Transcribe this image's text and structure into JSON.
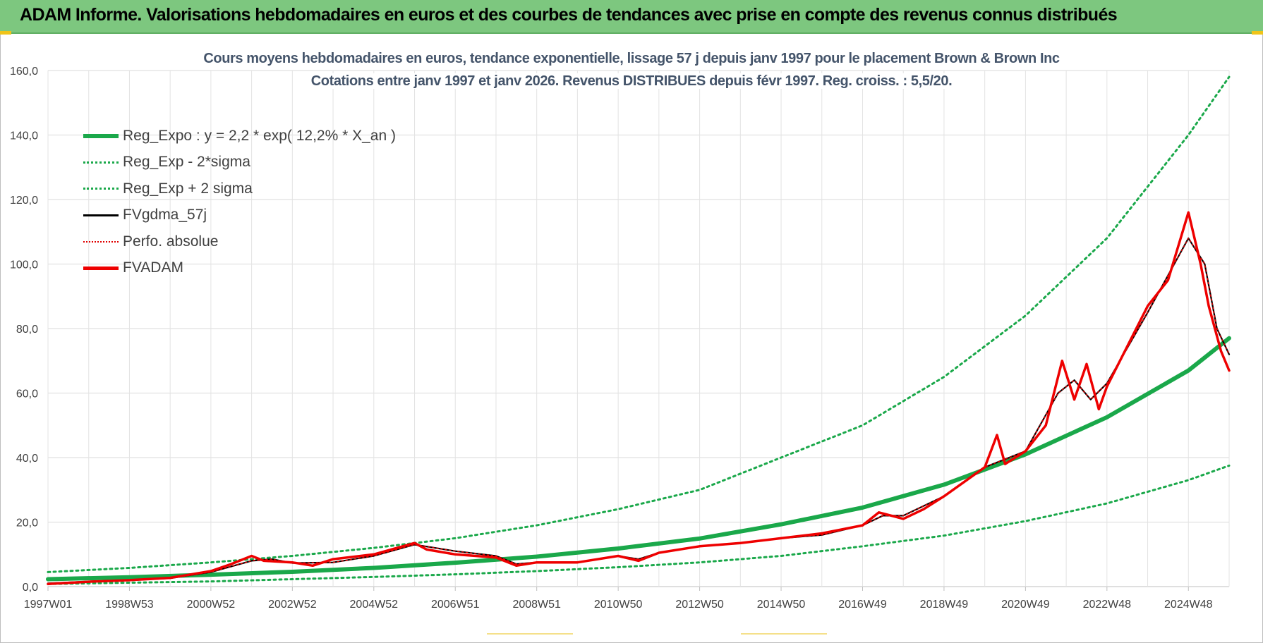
{
  "header": {
    "banner_title": "ADAM Informe. Valorisations hebdomadaires en euros et des courbes de tendances avec prise en compte des revenus connus distribués"
  },
  "colors": {
    "banner": "#7dc77f",
    "reg_expo": "#1aa84a",
    "sigma_bands": "#1aa84a",
    "fvgdma": "#000000",
    "perfo": "#e00000",
    "fvadam": "#ee0000",
    "title_text": "#44546a",
    "grid": "#d9d9d9"
  },
  "chart_data": {
    "type": "line",
    "title": "Cours moyens hebdomadaires en euros, tendance exponentielle, lissage 57 j depuis janv 1997 pour le placement Brown & Brown Inc",
    "subtitle": "Cotations entre janv 1997 et janv 2026. Revenus DISTRIBUES depuis févr 1997. Reg. croiss. : 5,5/20.",
    "xlabel": "",
    "ylabel": "",
    "ylim": [
      0,
      160
    ],
    "yticks": [
      "0,0",
      "20,0",
      "40,0",
      "60,0",
      "80,0",
      "100,0",
      "120,0",
      "140,0",
      "160,0"
    ],
    "xlim": [
      1997.0,
      2026.0
    ],
    "xticks": [
      {
        "label": "1997W01",
        "year": 1997.0
      },
      {
        "label": "1998W53",
        "year": 1999.0
      },
      {
        "label": "2000W52",
        "year": 2001.0
      },
      {
        "label": "2002W52",
        "year": 2003.0
      },
      {
        "label": "2004W52",
        "year": 2005.0
      },
      {
        "label": "2006W51",
        "year": 2007.0
      },
      {
        "label": "2008W51",
        "year": 2009.0
      },
      {
        "label": "2010W50",
        "year": 2011.0
      },
      {
        "label": "2012W50",
        "year": 2013.0
      },
      {
        "label": "2014W50",
        "year": 2015.0
      },
      {
        "label": "2016W49",
        "year": 2017.0
      },
      {
        "label": "2018W49",
        "year": 2019.0
      },
      {
        "label": "2020W49",
        "year": 2021.0
      },
      {
        "label": "2022W48",
        "year": 2023.0
      },
      {
        "label": "2024W48",
        "year": 2025.0
      }
    ],
    "grid": true,
    "legend_position": "top-left",
    "series": [
      {
        "name": "Reg_Expo : y = 2,2 * exp( 12,2% *  X_an )",
        "style": "solid-thick",
        "x": [
          1997,
          1999,
          2001,
          2003,
          2005,
          2007,
          2009,
          2011,
          2013,
          2015,
          2017,
          2019,
          2021,
          2023,
          2025,
          2026
        ],
        "y": [
          2.3,
          2.9,
          3.7,
          4.6,
          5.8,
          7.4,
          9.3,
          11.8,
          14.9,
          19.3,
          24.5,
          31.6,
          41.0,
          52.5,
          67.0,
          77.0
        ]
      },
      {
        "name": "Reg_Exp - 2*sigma",
        "style": "dotted",
        "x": [
          1997,
          1999,
          2001,
          2003,
          2005,
          2007,
          2009,
          2011,
          2013,
          2015,
          2017,
          2019,
          2021,
          2023,
          2025,
          2026
        ],
        "y": [
          0.8,
          1.2,
          1.6,
          2.3,
          3.0,
          3.8,
          4.8,
          6.0,
          7.5,
          9.5,
          12.5,
          15.8,
          20.3,
          25.8,
          33.0,
          37.5
        ]
      },
      {
        "name": "Reg_Exp + 2 sigma",
        "style": "dotted",
        "x": [
          1997,
          1999,
          2001,
          2003,
          2005,
          2007,
          2009,
          2011,
          2013,
          2015,
          2017,
          2019,
          2021,
          2023,
          2025,
          2026
        ],
        "y": [
          4.5,
          5.8,
          7.5,
          9.5,
          12.0,
          15.0,
          19.0,
          24.0,
          30.0,
          40.0,
          50.0,
          65.0,
          84.0,
          108.0,
          140.0,
          158.0
        ]
      },
      {
        "name": "FVgdma_57j",
        "style": "solid-thin",
        "x": [
          1997,
          1998,
          1999,
          2000,
          2001,
          2002,
          2002.5,
          2003,
          2004,
          2005,
          2006,
          2006.5,
          2007,
          2008,
          2008.5,
          2009,
          2010,
          2011,
          2011.5,
          2012,
          2013,
          2014,
          2015,
          2016,
          2017,
          2017.5,
          2018,
          2019,
          2020,
          2021,
          2021.8,
          2022.2,
          2022.6,
          2023,
          2024,
          2025,
          2025.4,
          2025.7,
          2026
        ],
        "y": [
          1.0,
          1.6,
          2.0,
          2.6,
          4.5,
          8.0,
          8.5,
          7.3,
          7.5,
          9.5,
          13.0,
          12.0,
          11.0,
          9.5,
          7.0,
          7.5,
          7.5,
          9.5,
          8.5,
          10.5,
          12.5,
          13.5,
          15.0,
          16.0,
          19.0,
          22.0,
          22.0,
          28.0,
          37.0,
          42.0,
          60.0,
          64.0,
          58.0,
          63.0,
          85.0,
          108.0,
          100.0,
          80.0,
          72.0
        ]
      },
      {
        "name": "Perfo. absolue",
        "style": "dotted-thin",
        "x": [
          1997,
          1998,
          1999,
          2000,
          2001,
          2002,
          2002.5,
          2003,
          2004,
          2005,
          2006,
          2006.5,
          2007,
          2008,
          2008.5,
          2009,
          2010,
          2011,
          2011.5,
          2012,
          2013,
          2014,
          2015,
          2016,
          2017,
          2017.5,
          2018,
          2019,
          2020,
          2021,
          2021.8,
          2022.2,
          2022.6,
          2023,
          2024,
          2025,
          2025.4,
          2025.7,
          2026
        ],
        "y": [
          1.0,
          1.6,
          2.0,
          2.6,
          4.5,
          8.0,
          8.5,
          7.3,
          7.5,
          9.5,
          13.0,
          12.0,
          11.0,
          9.5,
          7.0,
          7.5,
          7.5,
          9.5,
          8.5,
          10.5,
          12.5,
          13.5,
          15.0,
          16.0,
          19.0,
          22.0,
          22.0,
          28.0,
          37.0,
          42.0,
          60.0,
          64.0,
          58.0,
          63.0,
          85.0,
          108.0,
          100.0,
          80.0,
          72.0
        ]
      },
      {
        "name": "FVADAM",
        "style": "solid-thick-red",
        "x": [
          1997,
          1998,
          1999,
          2000,
          2001,
          2001.5,
          2002,
          2002.3,
          2003,
          2003.5,
          2004,
          2005,
          2006,
          2006.3,
          2007,
          2008,
          2008.5,
          2009,
          2010,
          2011,
          2011.5,
          2012,
          2013,
          2014,
          2015,
          2016,
          2017,
          2017.4,
          2018,
          2018.5,
          2019,
          2020,
          2020.3,
          2020.5,
          2021,
          2021.5,
          2021.9,
          2022.2,
          2022.5,
          2022.8,
          2023,
          2024,
          2024.5,
          2025,
          2025.3,
          2025.5,
          2025.8,
          2026
        ],
        "y": [
          0.8,
          1.5,
          2.0,
          2.7,
          4.8,
          7.0,
          9.5,
          8.0,
          7.5,
          6.5,
          8.5,
          10.0,
          13.5,
          11.5,
          10.0,
          9.0,
          6.5,
          7.5,
          7.5,
          9.5,
          8.0,
          10.5,
          12.5,
          13.5,
          15.0,
          16.5,
          19.0,
          23.0,
          21.0,
          24.0,
          28.0,
          37.0,
          47.0,
          38.0,
          42.0,
          50.0,
          70.0,
          58.0,
          69.0,
          55.0,
          62.0,
          87.0,
          95.0,
          116.0,
          100.0,
          87.0,
          73.0,
          67.0
        ]
      }
    ]
  },
  "legend": [
    {
      "label": "Reg_Expo : y = 2,2 * exp( 12,2% *  X_an )",
      "style": "solid-thick",
      "color": "#1aa84a"
    },
    {
      "label": "Reg_Exp - 2*sigma",
      "style": "dotted",
      "color": "#1aa84a"
    },
    {
      "label": "Reg_Exp + 2 sigma",
      "style": "dotted",
      "color": "#1aa84a"
    },
    {
      "label": "FVgdma_57j",
      "style": "solid-thin",
      "color": "#000000"
    },
    {
      "label": "Perfo. absolue",
      "style": "dotted-thin",
      "color": "#e00000"
    },
    {
      "label": "FVADAM",
      "style": "solid-thick-red",
      "color": "#ee0000"
    }
  ]
}
